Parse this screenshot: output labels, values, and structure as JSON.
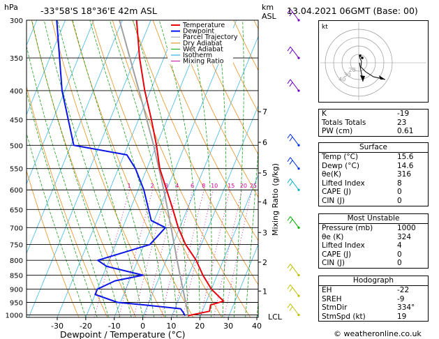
{
  "header": {
    "location": "-33°58'S  18°36'E  42m  ASL",
    "datetime": "13.04.2021  06GMT  (Base: 00)",
    "hpa_label": "hPa",
    "km_label": "km",
    "asl_label": "ASL"
  },
  "legend": [
    {
      "label": "Temperature",
      "color": "#e8000b"
    },
    {
      "label": "Dewpoint",
      "color": "#0010f0"
    },
    {
      "label": "Parcel Trajectory",
      "color": "#999999"
    },
    {
      "label": "Dry Adiabat",
      "color": "#e08000"
    },
    {
      "label": "Wet Adiabat",
      "color": "#00a000"
    },
    {
      "label": "Isotherm",
      "color": "#00a0e0"
    },
    {
      "label": "Mixing Ratio",
      "color": "#c000a0"
    }
  ],
  "chart_data": {
    "type": "skew-t",
    "xlabel": "Dewpoint / Temperature (°C)",
    "ylabel_right": "Mixing Ratio (g/kg)",
    "pressure_levels": [
      300,
      350,
      400,
      450,
      500,
      550,
      600,
      650,
      700,
      750,
      800,
      850,
      900,
      950,
      1000
    ],
    "temp_ticks": [
      -30,
      -20,
      -10,
      0,
      10,
      20,
      30,
      40
    ],
    "km_ticks": [
      {
        "km": "1",
        "p": 907
      },
      {
        "km": "2",
        "p": 806
      },
      {
        "km": "3",
        "p": 714
      },
      {
        "km": "4",
        "p": 630
      },
      {
        "km": "5",
        "p": 560
      },
      {
        "km": "6",
        "p": 494
      },
      {
        "km": "7",
        "p": 436
      }
    ],
    "lcl_label": "LCL",
    "lcl_p": 1000,
    "mixing_ratio_labels": [
      "1",
      "2",
      "3",
      "4",
      "6",
      "8",
      "10",
      "15",
      "20",
      "25"
    ],
    "mixing_ratio_values": [
      1,
      2,
      3,
      4,
      6,
      8,
      10,
      15,
      20,
      25
    ],
    "temperature": [
      {
        "p": 1003,
        "t": 15.6
      },
      {
        "p": 985,
        "t": 22.5
      },
      {
        "p": 960,
        "t": 22.0
      },
      {
        "p": 945,
        "t": 26.0
      },
      {
        "p": 930,
        "t": 24.0
      },
      {
        "p": 900,
        "t": 20.0
      },
      {
        "p": 850,
        "t": 15.0
      },
      {
        "p": 800,
        "t": 10.5
      },
      {
        "p": 750,
        "t": 4.5
      },
      {
        "p": 700,
        "t": -0.5
      },
      {
        "p": 650,
        "t": -5.0
      },
      {
        "p": 600,
        "t": -10.0
      },
      {
        "p": 550,
        "t": -15.5
      },
      {
        "p": 500,
        "t": -20.0
      },
      {
        "p": 450,
        "t": -25.5
      },
      {
        "p": 400,
        "t": -32.0
      },
      {
        "p": 350,
        "t": -38.5
      },
      {
        "p": 300,
        "t": -45.0
      }
    ],
    "dewpoint": [
      {
        "p": 1003,
        "t": 14.6
      },
      {
        "p": 990,
        "t": 13.5
      },
      {
        "p": 975,
        "t": 12.0
      },
      {
        "p": 960,
        "t": -1.0
      },
      {
        "p": 950,
        "t": -11.0
      },
      {
        "p": 920,
        "t": -20.0
      },
      {
        "p": 900,
        "t": -20.0
      },
      {
        "p": 870,
        "t": -15.0
      },
      {
        "p": 850,
        "t": -6.0
      },
      {
        "p": 820,
        "t": -20.0
      },
      {
        "p": 800,
        "t": -24.0
      },
      {
        "p": 750,
        "t": -8.0
      },
      {
        "p": 700,
        "t": -5.0
      },
      {
        "p": 680,
        "t": -11.0
      },
      {
        "p": 600,
        "t": -18.0
      },
      {
        "p": 550,
        "t": -24.0
      },
      {
        "p": 520,
        "t": -29.0
      },
      {
        "p": 500,
        "t": -49.0
      },
      {
        "p": 400,
        "t": -61.0
      },
      {
        "p": 300,
        "t": -73.0
      }
    ],
    "parcel": [
      {
        "p": 1000,
        "t": 15.6
      },
      {
        "p": 900,
        "t": 10.0
      },
      {
        "p": 800,
        "t": 3.8
      },
      {
        "p": 700,
        "t": -3.0
      },
      {
        "p": 600,
        "t": -11.0
      },
      {
        "p": 500,
        "t": -21.0
      },
      {
        "p": 400,
        "t": -34.0
      },
      {
        "p": 300,
        "t": -51.0
      }
    ],
    "wind_barbs": [
      {
        "p": 300,
        "color": "#7000c0"
      },
      {
        "p": 350,
        "color": "#7000c0"
      },
      {
        "p": 400,
        "color": "#7000c0"
      },
      {
        "p": 500,
        "color": "#0030e0"
      },
      {
        "p": 550,
        "color": "#0030e0"
      },
      {
        "p": 600,
        "color": "#00b0c0"
      },
      {
        "p": 700,
        "color": "#00b000"
      },
      {
        "p": 850,
        "color": "#c0c000"
      },
      {
        "p": 925,
        "color": "#c0c000"
      },
      {
        "p": 1000,
        "color": "#c0c000"
      }
    ]
  },
  "hodograph": {
    "unit_label": "kt",
    "rings": [
      "10",
      "20",
      "30",
      "40"
    ]
  },
  "indices": [
    {
      "label": "K",
      "value": "-19"
    },
    {
      "label": "Totals Totals",
      "value": "23"
    },
    {
      "label": "PW (cm)",
      "value": "0.61"
    }
  ],
  "surface": {
    "title": "Surface",
    "rows": [
      {
        "label": "Temp (°C)",
        "value": "15.6"
      },
      {
        "label": "Dewp (°C)",
        "value": "14.6"
      },
      {
        "label": "θe(K)",
        "value": "316"
      },
      {
        "label": "Lifted Index",
        "value": "8"
      },
      {
        "label": "CAPE (J)",
        "value": "0"
      },
      {
        "label": "CIN (J)",
        "value": "0"
      }
    ]
  },
  "most_unstable": {
    "title": "Most Unstable",
    "rows": [
      {
        "label": "Pressure (mb)",
        "value": "1000"
      },
      {
        "label": "θe (K)",
        "value": "324"
      },
      {
        "label": "Lifted Index",
        "value": "4"
      },
      {
        "label": "CAPE (J)",
        "value": "0"
      },
      {
        "label": "CIN (J)",
        "value": "0"
      }
    ]
  },
  "hodo_table": {
    "title": "Hodograph",
    "rows": [
      {
        "label": "EH",
        "value": "-22"
      },
      {
        "label": "SREH",
        "value": "-9"
      },
      {
        "label": "StmDir",
        "value": "334°"
      },
      {
        "label": "StmSpd (kt)",
        "value": "19"
      }
    ]
  },
  "footer": "© weatheronline.co.uk"
}
